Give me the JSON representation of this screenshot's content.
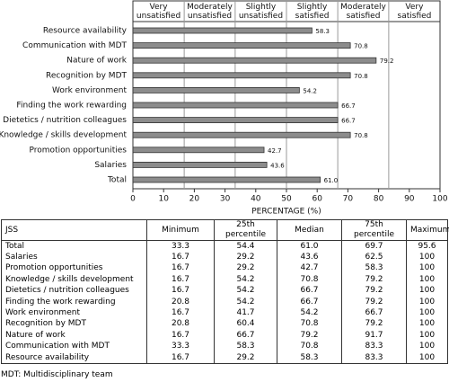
{
  "chart_data": {
    "type": "hbar",
    "categories": [
      "Resource availability",
      "Communication with MDT",
      "Nature of work",
      "Recognition by MDT",
      "Work environment",
      "Finding the work rewarding",
      "Dietetics / nutrition colleagues",
      "Knowledge / skills development",
      "Promotion opportunities",
      "Salaries",
      "Total"
    ],
    "values": [
      58.3,
      70.8,
      79.2,
      70.8,
      54.2,
      66.7,
      66.7,
      70.8,
      42.7,
      43.6,
      61.0
    ],
    "value_labels": [
      "58.3",
      "70.8",
      "79.2",
      "70.8",
      "54.2",
      "66.7",
      "66.7",
      "70.8",
      "42.7",
      "43.6",
      "61.0"
    ],
    "color": "#8c8c8c",
    "xlim": [
      0,
      100
    ],
    "xticks": [
      0,
      10,
      20,
      30,
      40,
      50,
      60,
      70,
      80,
      90,
      100
    ],
    "xlabel": "PERCENTAGE (%)",
    "zones": [
      {
        "label": "Very unsatisfied",
        "range": [
          0,
          16.7
        ]
      },
      {
        "label": "Moderately unsatisfied",
        "range": [
          16.7,
          33.3
        ]
      },
      {
        "label": "Slightly unsatisfied",
        "range": [
          33.3,
          50
        ]
      },
      {
        "label": "Slightly satisfied",
        "range": [
          50,
          66.7
        ]
      },
      {
        "label": "Moderately satisfied",
        "range": [
          66.7,
          83.3
        ]
      },
      {
        "label": "Very satisfied",
        "range": [
          83.3,
          100
        ]
      }
    ]
  },
  "table": {
    "header": [
      "JSS",
      "Minimum",
      "25th percentile",
      "Median",
      "75th percentile",
      "Maximum"
    ],
    "rows": [
      [
        "Total",
        "33.3",
        "54.4",
        "61.0",
        "69.7",
        "95.6"
      ],
      [
        "Salaries",
        "16.7",
        "29.2",
        "43.6",
        "62.5",
        "100"
      ],
      [
        "Promotion opportunities",
        "16.7",
        "29.2",
        "42.7",
        "58.3",
        "100"
      ],
      [
        "Knowledge / skills development",
        "16.7",
        "54.2",
        "70.8",
        "79.2",
        "100"
      ],
      [
        "Dietetics / nutrition colleagues",
        "16.7",
        "54.2",
        "66.7",
        "79.2",
        "100"
      ],
      [
        "Finding the work rewarding",
        "20.8",
        "54.2",
        "66.7",
        "79.2",
        "100"
      ],
      [
        "Work environment",
        "16.7",
        "41.7",
        "54.2",
        "66.7",
        "100"
      ],
      [
        "Recognition by MDT",
        "20.8",
        "60.4",
        "70.8",
        "79.2",
        "100"
      ],
      [
        "Nature of work",
        "16.7",
        "66.7",
        "79.2",
        "91.7",
        "100"
      ],
      [
        "Communication with MDT",
        "33.3",
        "58.3",
        "70.8",
        "83.3",
        "100"
      ],
      [
        "Resource availability",
        "16.7",
        "29.2",
        "58.3",
        "83.3",
        "100"
      ]
    ]
  },
  "footnote": "MDT: Multidisciplinary team"
}
